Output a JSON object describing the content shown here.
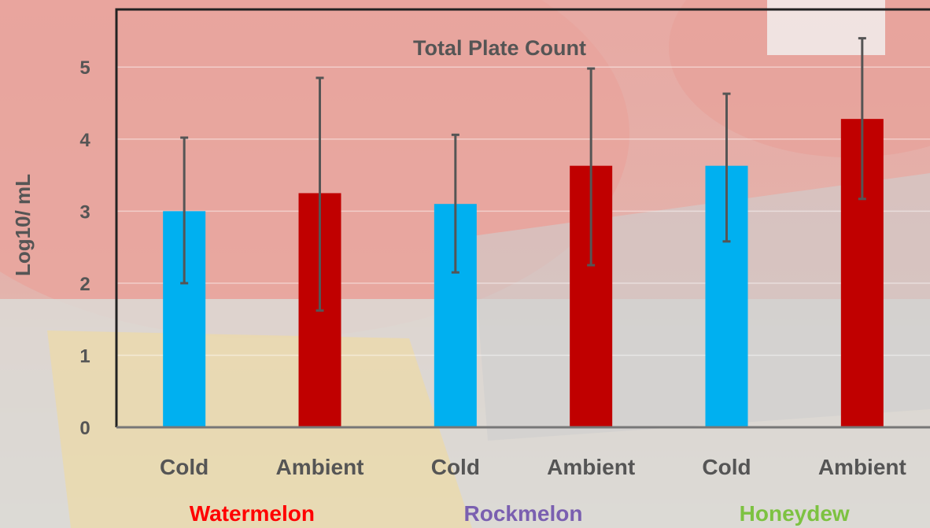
{
  "chart_data": {
    "type": "bar",
    "title": "Total Plate Count",
    "ylabel": "Log10/ mL",
    "xlabel": "",
    "ylim": [
      0,
      5.8
    ],
    "yticks": [
      "0",
      "1",
      "2",
      "3",
      "4",
      "5"
    ],
    "grid": true,
    "categories": [
      "Cold",
      "Ambient",
      "Cold",
      "Ambient",
      "Cold",
      "Ambient"
    ],
    "values": [
      3.0,
      3.25,
      3.1,
      3.63,
      3.63,
      4.28
    ],
    "error_low": [
      2.0,
      1.62,
      2.15,
      2.25,
      2.58,
      3.17
    ],
    "error_high": [
      4.02,
      4.85,
      4.06,
      4.98,
      4.63,
      5.4
    ],
    "bar_colors": [
      "#00b0f0",
      "#c00000",
      "#00b0f0",
      "#c00000",
      "#00b0f0",
      "#c00000"
    ],
    "groups": [
      {
        "label": "Watermelon",
        "color": "#ff0000"
      },
      {
        "label": "Rockmelon",
        "color": "#7a5fb0"
      },
      {
        "label": "Honeydew",
        "color": "#7dc241"
      }
    ]
  },
  "colors": {
    "cold": "#00b0f0",
    "ambient": "#c00000",
    "axis": "#222222",
    "error_bar": "#555555",
    "text": "#555555"
  }
}
